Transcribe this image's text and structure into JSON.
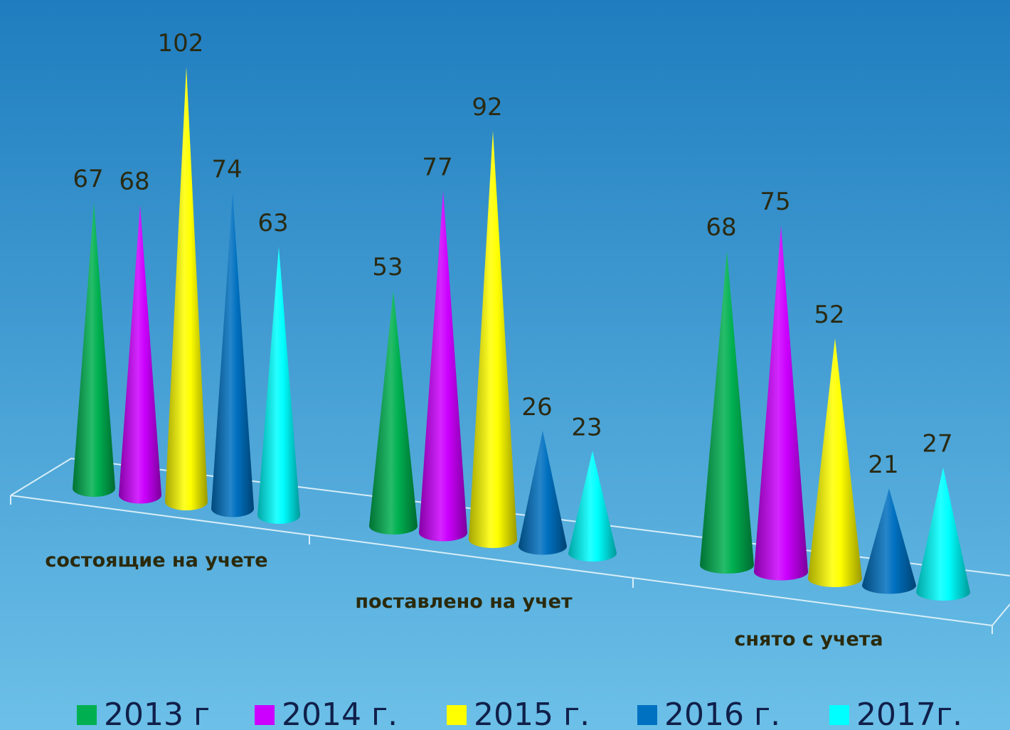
{
  "chart_data": {
    "type": "cone",
    "categories": [
      "состоящие на учете",
      "поставлено на учет",
      "снято с учета"
    ],
    "series": [
      {
        "name": "2013 г",
        "color": "#00b050",
        "values": [
          67,
          53,
          68
        ]
      },
      {
        "name": "2014 г.",
        "color": "#cc00ff",
        "values": [
          68,
          77,
          75
        ]
      },
      {
        "name": "2015 г.",
        "color": "#ffff00",
        "values": [
          102,
          92,
          52
        ]
      },
      {
        "name": "2016 г.",
        "color": "#0070c0",
        "values": [
          74,
          26,
          21
        ]
      },
      {
        "name": "2017г.",
        "color": "#00ffff",
        "values": [
          63,
          23,
          27
        ]
      }
    ]
  }
}
